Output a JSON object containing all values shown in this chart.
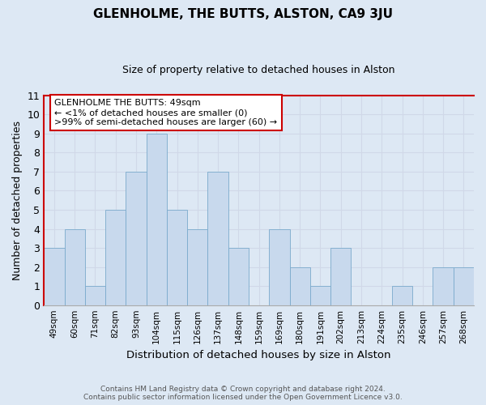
{
  "title": "GLENHOLME, THE BUTTS, ALSTON, CA9 3JU",
  "subtitle": "Size of property relative to detached houses in Alston",
  "xlabel": "Distribution of detached houses by size in Alston",
  "ylabel": "Number of detached properties",
  "categories": [
    "49sqm",
    "60sqm",
    "71sqm",
    "82sqm",
    "93sqm",
    "104sqm",
    "115sqm",
    "126sqm",
    "137sqm",
    "148sqm",
    "159sqm",
    "169sqm",
    "180sqm",
    "191sqm",
    "202sqm",
    "213sqm",
    "224sqm",
    "235sqm",
    "246sqm",
    "257sqm",
    "268sqm"
  ],
  "values": [
    3,
    4,
    1,
    5,
    7,
    9,
    5,
    4,
    7,
    3,
    0,
    4,
    2,
    1,
    3,
    0,
    0,
    1,
    0,
    2,
    2
  ],
  "bar_color_normal": "#c8d9ed",
  "bar_edge_color": "#7aaacc",
  "ylim": [
    0,
    11
  ],
  "yticks": [
    0,
    1,
    2,
    3,
    4,
    5,
    6,
    7,
    8,
    9,
    10,
    11
  ],
  "annotation_title": "GLENHOLME THE BUTTS: 49sqm",
  "annotation_line1": "← <1% of detached houses are smaller (0)",
  "annotation_line2": ">99% of semi-detached houses are larger (60) →",
  "annotation_box_color": "#ffffff",
  "annotation_box_edge": "#cc0000",
  "footer_line1": "Contains HM Land Registry data © Crown copyright and database right 2024.",
  "footer_line2": "Contains public sector information licensed under the Open Government Licence v3.0.",
  "grid_color": "#d0d8e8",
  "background_color": "#dde8f4",
  "border_color": "#cc0000"
}
